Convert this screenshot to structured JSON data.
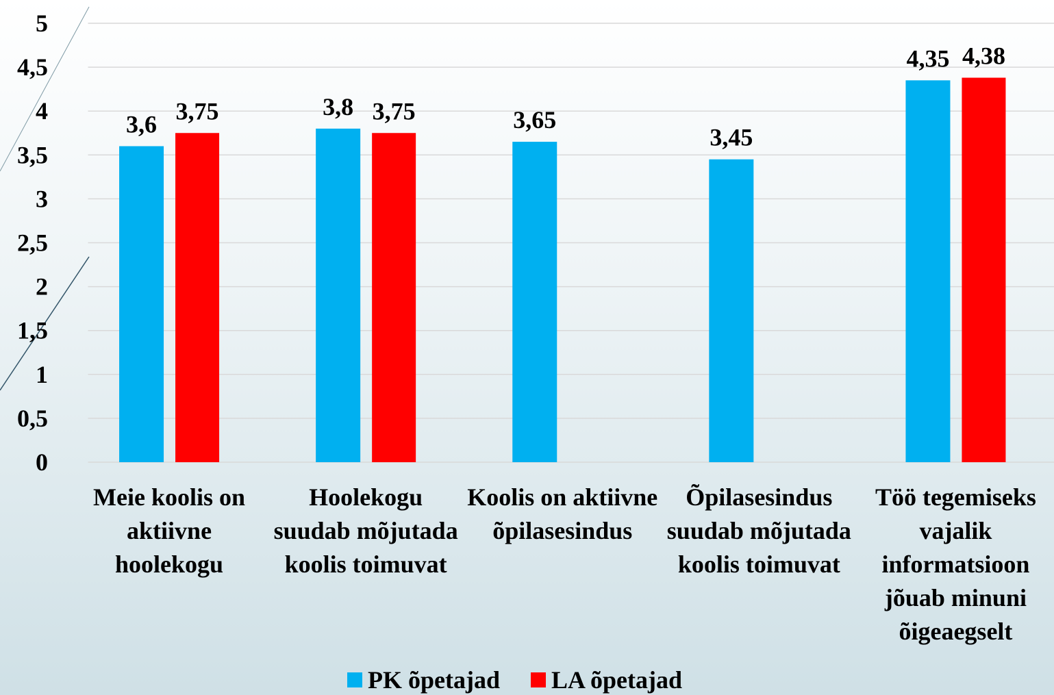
{
  "chart_data": {
    "type": "bar",
    "categories": [
      "Meie koolis on aktiivne hoolekogu",
      "Hoolekogu suudab mõjutada koolis toimuvat",
      "Koolis on aktiivne õpilasesindus",
      "Õpilasesindus suudab mõjutada koolis toimuvat",
      "Töö tegemiseks vajalik informatsioon jõuab minuni õigeaegselt"
    ],
    "series": [
      {
        "name": "PK õpetajad",
        "color": "#00b0f0",
        "values": [
          3.6,
          3.8,
          3.65,
          3.45,
          4.35
        ],
        "value_labels": [
          "3,6",
          "3,8",
          "3,65",
          "3,45",
          "4,35"
        ]
      },
      {
        "name": "LA õpetajad",
        "color": "#ff0000",
        "values": [
          3.75,
          3.75,
          null,
          null,
          4.38
        ],
        "value_labels": [
          "3,75",
          "3,75",
          null,
          null,
          "4,38"
        ]
      }
    ],
    "ylim": [
      0,
      5
    ],
    "yticks": [
      0,
      {
        "value": 0.5,
        "label": "0,5"
      },
      1,
      {
        "value": 1.5,
        "label": "1,5"
      },
      2,
      {
        "value": 2.5,
        "label": "2,5"
      },
      3,
      {
        "value": 3.5,
        "label": "3,5"
      },
      4,
      {
        "value": 4.5,
        "label": "4,5"
      },
      5
    ],
    "grid": true,
    "legend": "bottom"
  }
}
